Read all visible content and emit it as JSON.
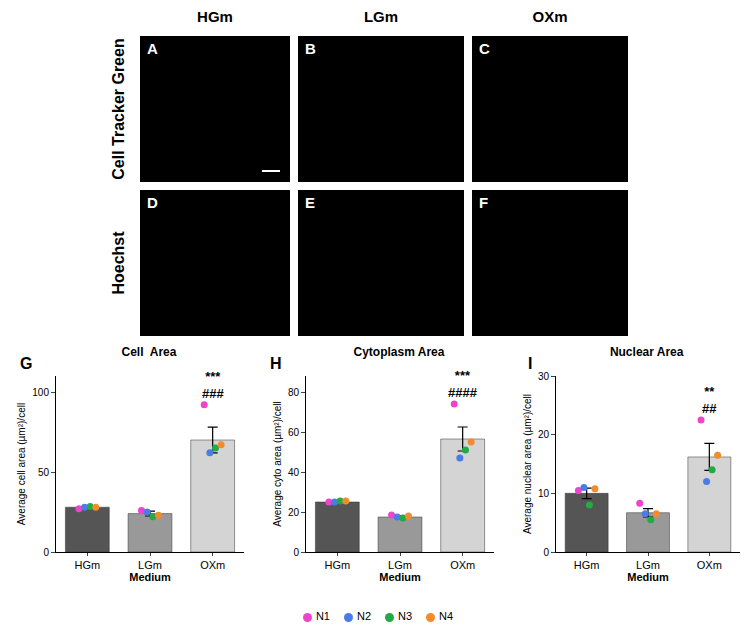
{
  "image_panels": {
    "columns": [
      "HGm",
      "LGm",
      "OXm"
    ],
    "rows": [
      {
        "label": "Cell Tracker Green",
        "panels": [
          "A",
          "B",
          "C"
        ]
      },
      {
        "label": "Hoechst",
        "panels": [
          "D",
          "E",
          "F"
        ]
      }
    ]
  },
  "chart_data": [
    {
      "type": "bar",
      "panel": "G",
      "title": "Cell  Area",
      "x_label": "Medium",
      "y_label": "Average cell area (µm²)/cell",
      "categories": [
        "HGm",
        "LGm",
        "OXm"
      ],
      "values": [
        28,
        24,
        70
      ],
      "errors": [
        0.5,
        1.5,
        8
      ],
      "colors": [
        "#555555",
        "#999999",
        "#d4d4d4"
      ],
      "ylim": [
        0,
        110
      ],
      "yticks": [
        0,
        50,
        100
      ],
      "grid": false,
      "legend": "bottom",
      "annotations": [
        {
          "category": "OXm",
          "text": [
            "***",
            "###"
          ]
        }
      ],
      "series": [
        {
          "name": "N1",
          "type": "scatter",
          "color": "#ee44cc",
          "values": [
            27,
            26,
            92
          ]
        },
        {
          "name": "N2",
          "type": "scatter",
          "color": "#4a7ce8",
          "values": [
            28,
            25,
            62
          ]
        },
        {
          "name": "N3",
          "type": "scatter",
          "color": "#22aa44",
          "values": [
            28.5,
            22,
            65
          ]
        },
        {
          "name": "N4",
          "type": "scatter",
          "color": "#f28a2e",
          "values": [
            28,
            23,
            67
          ]
        }
      ]
    },
    {
      "type": "bar",
      "panel": "H",
      "title": "Cytoplasm Area",
      "x_label": "Medium",
      "y_label": "Average cyto area (µm²)/cell",
      "categories": [
        "HGm",
        "LGm",
        "OXm"
      ],
      "values": [
        25,
        17.5,
        56.5
      ],
      "errors": [
        0.4,
        0.6,
        6
      ],
      "colors": [
        "#555555",
        "#999999",
        "#d4d4d4"
      ],
      "ylim": [
        0,
        88
      ],
      "yticks": [
        0,
        20,
        40,
        60,
        80
      ],
      "grid": false,
      "legend": "bottom",
      "annotations": [
        {
          "category": "OXm",
          "text": [
            "***",
            "####"
          ]
        }
      ],
      "series": [
        {
          "name": "N1",
          "type": "scatter",
          "color": "#ee44cc",
          "values": [
            25,
            18.5,
            74
          ]
        },
        {
          "name": "N2",
          "type": "scatter",
          "color": "#4a7ce8",
          "values": [
            25,
            17.5,
            47
          ]
        },
        {
          "name": "N3",
          "type": "scatter",
          "color": "#22aa44",
          "values": [
            25.5,
            17,
            51
          ]
        },
        {
          "name": "N4",
          "type": "scatter",
          "color": "#f28a2e",
          "values": [
            25.5,
            18,
            55
          ]
        }
      ]
    },
    {
      "type": "bar",
      "panel": "I",
      "title": "Nuclear Area",
      "x_label": "Medium",
      "y_label": "Average nuclear area (µm²)/cell",
      "categories": [
        "HGm",
        "LGm",
        "OXm"
      ],
      "values": [
        10,
        6.7,
        16.2
      ],
      "errors": [
        0.9,
        0.7,
        2.3
      ],
      "colors": [
        "#555555",
        "#999999",
        "#d4d4d4"
      ],
      "ylim": [
        0,
        30
      ],
      "yticks": [
        0,
        10,
        20,
        30
      ],
      "grid": false,
      "legend": "bottom",
      "annotations": [
        {
          "category": "OXm",
          "text": [
            "**",
            "##"
          ]
        }
      ],
      "series": [
        {
          "name": "N1",
          "type": "scatter",
          "color": "#ee44cc",
          "values": [
            10.5,
            8.3,
            22.5
          ]
        },
        {
          "name": "N2",
          "type": "scatter",
          "color": "#4a7ce8",
          "values": [
            11,
            6.5,
            12
          ]
        },
        {
          "name": "N3",
          "type": "scatter",
          "color": "#22aa44",
          "values": [
            8,
            5.5,
            14
          ]
        },
        {
          "name": "N4",
          "type": "scatter",
          "color": "#f28a2e",
          "values": [
            10.8,
            6.5,
            16.5
          ]
        }
      ]
    }
  ]
}
